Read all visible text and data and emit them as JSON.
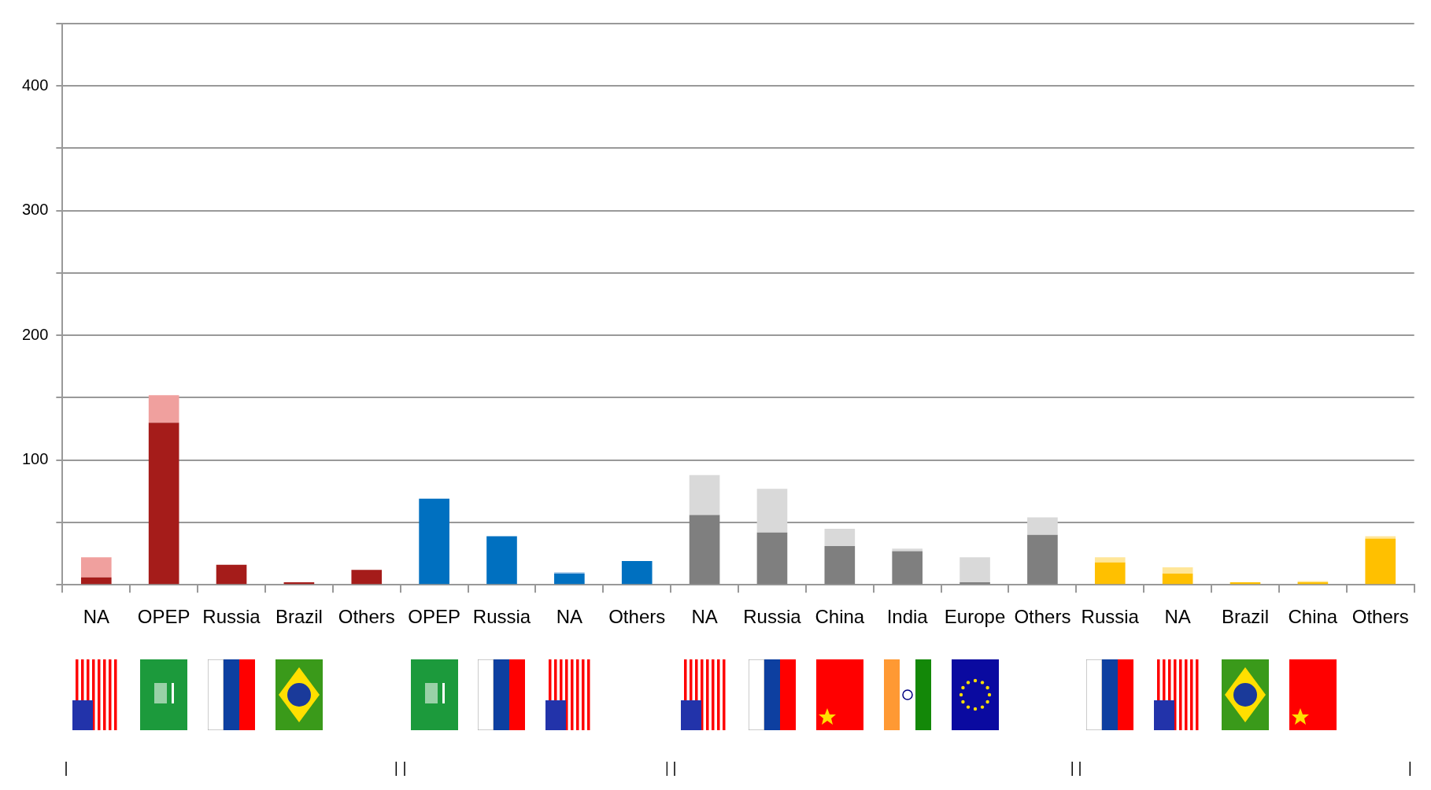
{
  "chart_data": {
    "type": "bar",
    "stacked": true,
    "grid": "y",
    "categories": [
      "NA",
      "OPEP",
      "Russia",
      "Brazil",
      "Others",
      "OPEP",
      "Russia",
      "NA",
      "Others",
      "NA",
      "Russia",
      "China",
      "India",
      "Europe",
      "Others",
      "Russia",
      "NA",
      "Brazil",
      "China",
      "Others"
    ],
    "series": [
      {
        "values": [
          6,
          130,
          16,
          2,
          12,
          69,
          39,
          9,
          19,
          56,
          42,
          31,
          27,
          2,
          40,
          18,
          9,
          2,
          2,
          37
        ],
        "colors": [
          "#a51c1a",
          "#a51c1a",
          "#a51c1a",
          "#a51c1a",
          "#a51c1a",
          "#0070c0",
          "#0070c0",
          "#0070c0",
          "#0070c0",
          "#7f7f7f",
          "#7f7f7f",
          "#7f7f7f",
          "#7f7f7f",
          "#7f7f7f",
          "#7f7f7f",
          "#ffc000",
          "#ffc000",
          "#ffc000",
          "#ffc000",
          "#ffc000"
        ]
      },
      {
        "values": [
          16,
          22,
          0,
          0,
          0,
          0,
          0,
          1,
          0,
          32,
          35,
          14,
          2,
          20,
          14,
          4,
          5,
          0,
          1,
          2
        ],
        "colors": [
          "#f0a09e",
          "#f0a09e",
          "#f0a09e",
          "#f0a09e",
          "#f0a09e",
          "#9dc3e6",
          "#9dc3e6",
          "#9dc3e6",
          "#9dc3e6",
          "#d9d9d9",
          "#d9d9d9",
          "#d9d9d9",
          "#d9d9d9",
          "#d9d9d9",
          "#d9d9d9",
          "#ffe699",
          "#ffe699",
          "#ffe699",
          "#ffe699",
          "#ffe699"
        ]
      }
    ],
    "ylim": [
      0,
      450
    ],
    "yticks": [
      {
        "value": 0,
        "label": null
      },
      {
        "value": 50,
        "label": null
      },
      100,
      {
        "value": 150,
        "label": null
      },
      200,
      {
        "value": 250,
        "label": null
      },
      300,
      {
        "value": 350,
        "label": null
      },
      400,
      {
        "value": 450,
        "label": null
      }
    ]
  }
}
